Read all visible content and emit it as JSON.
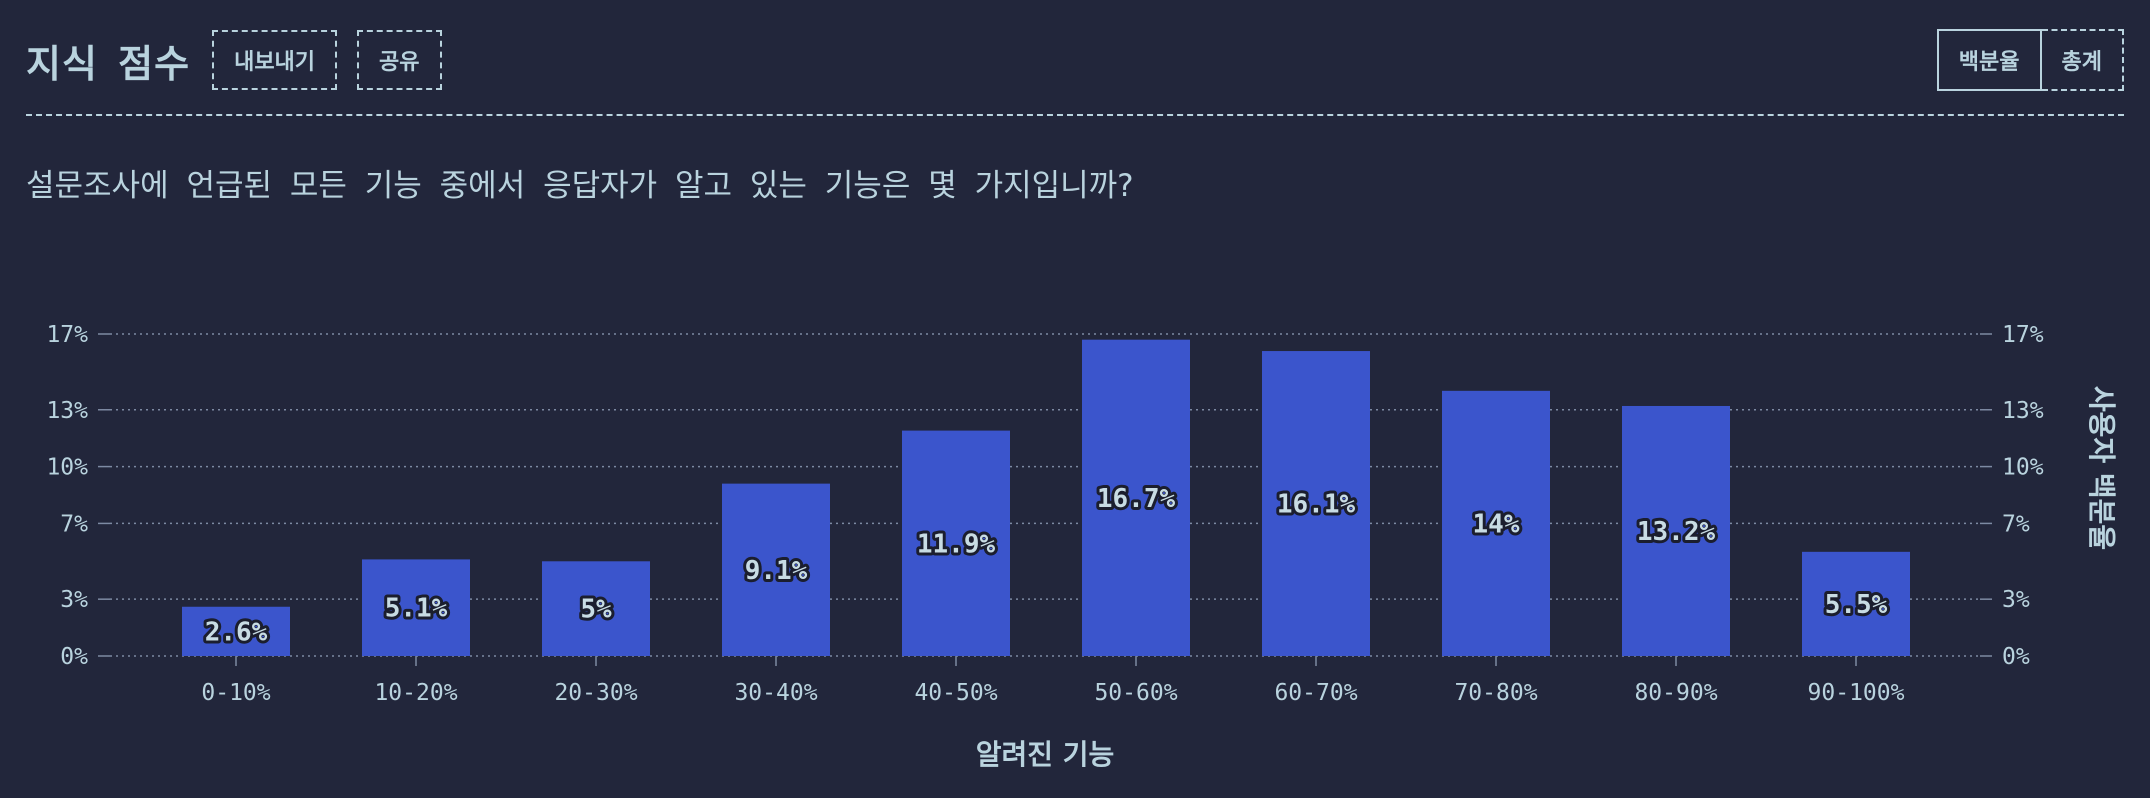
{
  "header": {
    "title": "지식 점수",
    "export_label": "내보내기",
    "share_label": "공유",
    "toggle": {
      "percent_label": "백분율",
      "total_label": "총계",
      "active": "percent"
    }
  },
  "question": "설문조사에 언급된 모든 기능 중에서 응답자가 알고 있는 기능은 몇 가지입니까?",
  "colors": {
    "background": "#22263b",
    "bar": "#3b55cc",
    "text": "#b9d3de"
  },
  "chart_data": {
    "type": "bar",
    "categories": [
      "0-10%",
      "10-20%",
      "20-30%",
      "30-40%",
      "40-50%",
      "50-60%",
      "60-70%",
      "70-80%",
      "80-90%",
      "90-100%"
    ],
    "values": [
      2.6,
      5.1,
      5,
      9.1,
      11.9,
      16.7,
      16.1,
      14,
      13.2,
      5.5
    ],
    "value_labels": [
      "2.6%",
      "5.1%",
      "5%",
      "9.1%",
      "11.9%",
      "16.7%",
      "16.1%",
      "14%",
      "13.2%",
      "5.5%"
    ],
    "xlabel": "알려진 기능",
    "ylabel": "사용자 백분율",
    "yticks": [
      0,
      3,
      7,
      10,
      13,
      17
    ],
    "ytick_labels": [
      "0%",
      "3%",
      "7%",
      "10%",
      "13%",
      "17%"
    ],
    "ylim": [
      0,
      17
    ],
    "grid": true,
    "ticks_both_sides": true
  }
}
